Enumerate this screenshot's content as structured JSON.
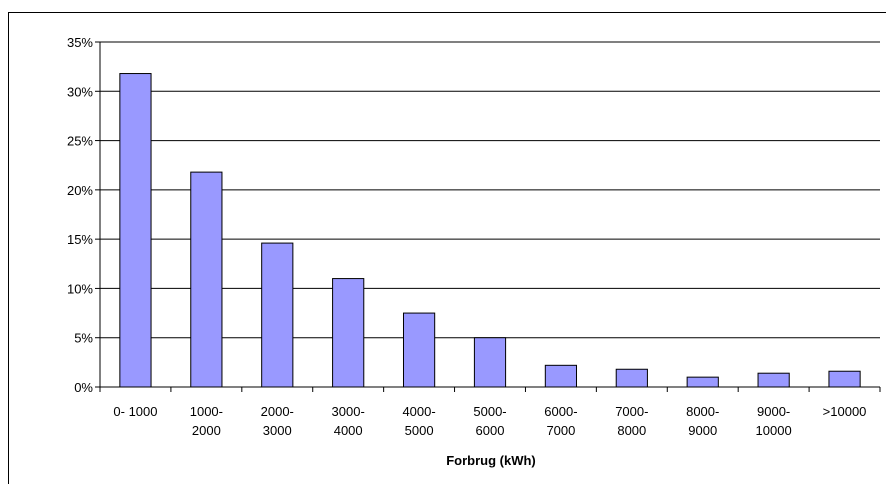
{
  "chart_data": {
    "type": "bar",
    "title": "",
    "xlabel": "Forbrug (kWh)",
    "ylabel": "",
    "ylim": [
      0,
      35
    ],
    "yticks": [
      "0%",
      "5%",
      "10%",
      "15%",
      "20%",
      "25%",
      "30%",
      "35%"
    ],
    "grid": true,
    "legend": "none",
    "bar_color": "#9999ff",
    "categories": [
      [
        "0- 1000"
      ],
      [
        "1000-",
        "2000"
      ],
      [
        "2000-",
        "3000"
      ],
      [
        "3000-",
        "4000"
      ],
      [
        "4000-",
        "5000"
      ],
      [
        "5000-",
        "6000"
      ],
      [
        "6000-",
        "7000"
      ],
      [
        "7000-",
        "8000"
      ],
      [
        "8000-",
        "9000"
      ],
      [
        "9000-",
        "10000"
      ],
      [
        ">10000"
      ]
    ],
    "values": [
      31.8,
      21.8,
      14.6,
      11.0,
      7.5,
      5.0,
      2.2,
      1.8,
      1.0,
      1.4,
      1.6
    ]
  }
}
